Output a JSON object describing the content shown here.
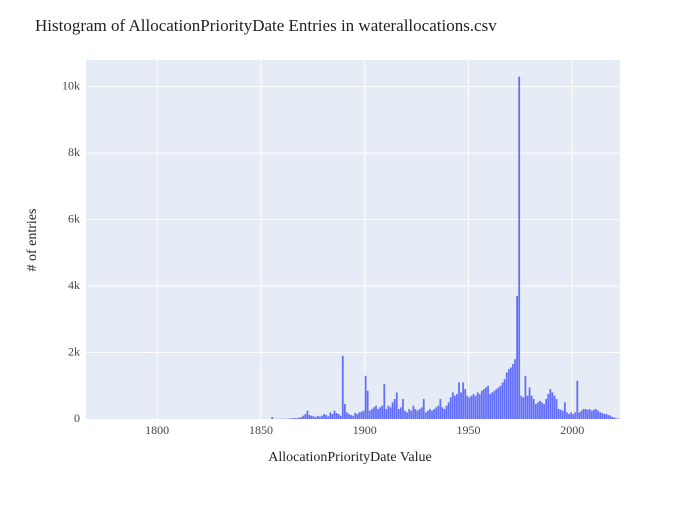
{
  "chart_data": {
    "type": "histogram",
    "title": "Histogram of AllocationPriorityDate Entries in waterallocations.csv",
    "x_label": "AllocationPriorityDate Value",
    "y_label": "# of entries",
    "color": "#636efa",
    "grid": true,
    "bins": [
      1855,
      1856,
      1857,
      1858,
      1859,
      1860,
      1861,
      1862,
      1863,
      1864,
      1865,
      1866,
      1867,
      1868,
      1869,
      1870,
      1871,
      1872,
      1873,
      1874,
      1875,
      1876,
      1877,
      1878,
      1879,
      1880,
      1881,
      1882,
      1883,
      1884,
      1885,
      1886,
      1887,
      1888,
      1889,
      1890,
      1891,
      1892,
      1893,
      1894,
      1895,
      1896,
      1897,
      1898,
      1899,
      1900,
      1901,
      1902,
      1903,
      1904,
      1905,
      1906,
      1907,
      1908,
      1909,
      1910,
      1911,
      1912,
      1913,
      1914,
      1915,
      1916,
      1917,
      1918,
      1919,
      1920,
      1921,
      1922,
      1923,
      1924,
      1925,
      1926,
      1927,
      1928,
      1929,
      1930,
      1931,
      1932,
      1933,
      1934,
      1935,
      1936,
      1937,
      1938,
      1939,
      1940,
      1941,
      1942,
      1943,
      1944,
      1945,
      1946,
      1947,
      1948,
      1949,
      1950,
      1951,
      1952,
      1953,
      1954,
      1955,
      1956,
      1957,
      1958,
      1959,
      1960,
      1961,
      1962,
      1963,
      1964,
      1965,
      1966,
      1967,
      1968,
      1969,
      1970,
      1971,
      1972,
      1973,
      1974,
      1975,
      1976,
      1977,
      1978,
      1979,
      1980,
      1981,
      1982,
      1983,
      1984,
      1985,
      1986,
      1987,
      1988,
      1989,
      1990,
      1991,
      1992,
      1993,
      1994,
      1995,
      1996,
      1997,
      1998,
      1999,
      2000,
      2001,
      2002,
      2003,
      2004,
      2005,
      2006,
      2007,
      2008,
      2009,
      2010,
      2011,
      2012,
      2013,
      2014,
      2015,
      2016,
      2017,
      2018,
      2019,
      2020,
      2021,
      2022,
      2023
    ],
    "values": [
      60,
      5,
      5,
      5,
      5,
      10,
      5,
      10,
      15,
      20,
      20,
      30,
      25,
      40,
      60,
      100,
      150,
      250,
      120,
      100,
      80,
      60,
      90,
      70,
      100,
      150,
      120,
      80,
      200,
      150,
      250,
      180,
      150,
      100,
      1900,
      450,
      200,
      150,
      120,
      100,
      180,
      150,
      200,
      220,
      250,
      1300,
      850,
      250,
      300,
      350,
      400,
      300,
      350,
      400,
      1050,
      300,
      400,
      350,
      500,
      600,
      800,
      300,
      350,
      600,
      250,
      200,
      300,
      250,
      400,
      300,
      250,
      300,
      350,
      600,
      200,
      250,
      300,
      250,
      300,
      350,
      400,
      600,
      350,
      300,
      400,
      500,
      650,
      800,
      700,
      750,
      1100,
      800,
      1100,
      900,
      700,
      650,
      700,
      750,
      700,
      800,
      750,
      850,
      900,
      950,
      1000,
      750,
      800,
      850,
      900,
      950,
      1000,
      1100,
      1200,
      1400,
      1500,
      1550,
      1650,
      1800,
      3700,
      10300,
      700,
      650,
      1300,
      700,
      950,
      700,
      600,
      450,
      500,
      550,
      500,
      450,
      600,
      750,
      900,
      800,
      700,
      600,
      300,
      280,
      250,
      500,
      200,
      150,
      200,
      150,
      200,
      1150,
      200,
      250,
      300,
      300,
      280,
      300,
      250,
      280,
      300,
      250,
      200,
      180,
      150,
      150,
      120,
      100,
      60,
      40,
      20,
      10
    ],
    "xlim": [
      1765.7,
      2023
    ],
    "xticks": [
      1800,
      1850,
      1900,
      1950,
      2000
    ],
    "ylim": [
      0,
      10800
    ],
    "yticks": [
      0,
      {
        "value": 2000,
        "label": "2k"
      },
      {
        "value": 4000,
        "label": "4k"
      },
      {
        "value": 6000,
        "label": "6k"
      },
      {
        "value": 8000,
        "label": "8k"
      },
      {
        "value": 10000,
        "label": "10k"
      }
    ]
  }
}
